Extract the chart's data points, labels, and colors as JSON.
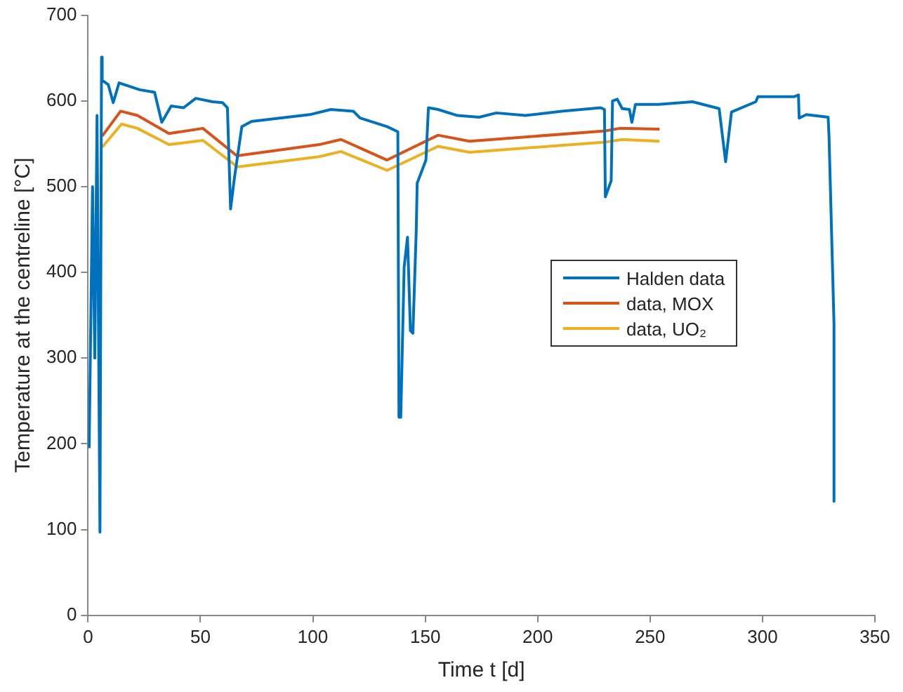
{
  "chart_data": {
    "type": "line",
    "xlabel": "Time t [d]",
    "ylabel": "Temperature at the centreline [°C]",
    "xlim": [
      0,
      350
    ],
    "ylim": [
      0,
      700
    ],
    "xticks": [
      0,
      50,
      100,
      150,
      200,
      250,
      300,
      350
    ],
    "yticks": [
      0,
      100,
      200,
      300,
      400,
      500,
      600,
      700
    ],
    "grid": false,
    "legend": "right",
    "marker": "none",
    "line_style": "solid",
    "series": [
      {
        "name": "Halden data",
        "color": "#0072bd",
        "x": [
          0.5,
          2,
          3,
          4,
          5.3,
          6,
          6.3,
          9,
          11.2,
          13.8,
          23,
          29.6,
          32.8,
          37,
          42.5,
          47.9,
          55.4,
          59.8,
          62,
          63.4,
          65.1,
          68.4,
          72.7,
          98.6,
          108,
          118,
          121,
          133,
          137.8,
          138.3,
          139.1,
          140.6,
          142.1,
          143.4,
          144.5,
          146,
          146.4,
          150.3,
          151.4,
          155.7,
          164.3,
          174,
          181.6,
          194.5,
          210.7,
          228,
          229.7,
          230.1,
          232.7,
          233.3,
          235.4,
          237.6,
          240.8,
          241.9,
          243.5,
          253.8,
          268.9,
          280.7,
          283.6,
          286.2,
          297,
          298,
          314.2,
          316,
          316.3,
          319.5,
          329.2,
          329.6,
          331.8,
          331.8
        ],
        "values": [
          195,
          500,
          300,
          583,
          97,
          651,
          624,
          619,
          598,
          621,
          613,
          610,
          575,
          594,
          592,
          603,
          599,
          598,
          592,
          474,
          510,
          570,
          576,
          584,
          590,
          588,
          580,
          570,
          564,
          231,
          231,
          406,
          441,
          332,
          329,
          450,
          504,
          531,
          592,
          590,
          583,
          581,
          586,
          583,
          588,
          592,
          590,
          488,
          507,
          600,
          602,
          591,
          590,
          575,
          596,
          596,
          599,
          591,
          529,
          587,
          599,
          605,
          605,
          607,
          580,
          584,
          581,
          558,
          340,
          133
        ]
      },
      {
        "name": "data, MOX",
        "color": "#d95319",
        "x": [
          6.3,
          14.5,
          22,
          36,
          51.1,
          66.2,
          102.8,
          112.5,
          133,
          155.7,
          169.7,
          230.1,
          236.5,
          254.2
        ],
        "values": [
          559,
          588,
          583,
          562,
          568,
          536,
          549,
          555,
          531,
          560,
          553,
          565,
          568,
          567
        ]
      },
      {
        "name": "data, UO₂",
        "color": "#edb120",
        "x": [
          6.3,
          14.9,
          22,
          36,
          51.1,
          66.5,
          102.8,
          112.5,
          133,
          155.7,
          169.7,
          230,
          237.6,
          254.2
        ],
        "values": [
          546,
          573,
          568,
          549,
          554,
          523,
          535,
          541,
          519,
          547,
          540,
          552,
          555,
          553
        ]
      }
    ]
  }
}
